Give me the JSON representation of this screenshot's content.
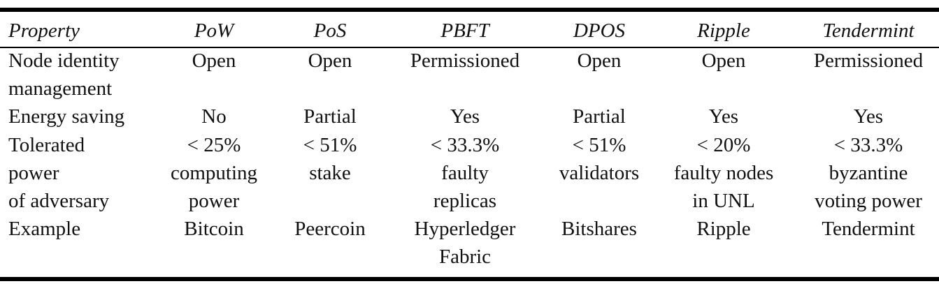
{
  "table": {
    "header": [
      "Property",
      "PoW",
      "PoS",
      "PBFT",
      "DPOS",
      "Ripple",
      "Tendermint"
    ],
    "rows": [
      [
        [
          "Node identity",
          "management"
        ],
        [
          "Open"
        ],
        [
          "Open"
        ],
        [
          "Permissioned"
        ],
        [
          "Open"
        ],
        [
          "Open"
        ],
        [
          "Permissioned"
        ]
      ],
      [
        [
          "Energy saving"
        ],
        [
          "No"
        ],
        [
          "Partial"
        ],
        [
          "Yes"
        ],
        [
          "Partial"
        ],
        [
          "Yes"
        ],
        [
          "Yes"
        ]
      ],
      [
        [
          "Tolerated",
          "power",
          "of adversary"
        ],
        [
          "< 25%",
          "computing",
          "power"
        ],
        [
          "< 51%",
          "stake"
        ],
        [
          "< 33.3%",
          "faulty",
          "replicas"
        ],
        [
          "< 51%",
          "validators"
        ],
        [
          "< 20%",
          "faulty nodes",
          "in UNL"
        ],
        [
          "< 33.3%",
          "byzantine",
          "voting power"
        ]
      ],
      [
        [
          "Example"
        ],
        [
          "Bitcoin"
        ],
        [
          "Peercoin"
        ],
        [
          "Hyperledger",
          "Fabric"
        ],
        [
          "Bitshares"
        ],
        [
          "Ripple"
        ],
        [
          "Tendermint"
        ]
      ]
    ]
  }
}
